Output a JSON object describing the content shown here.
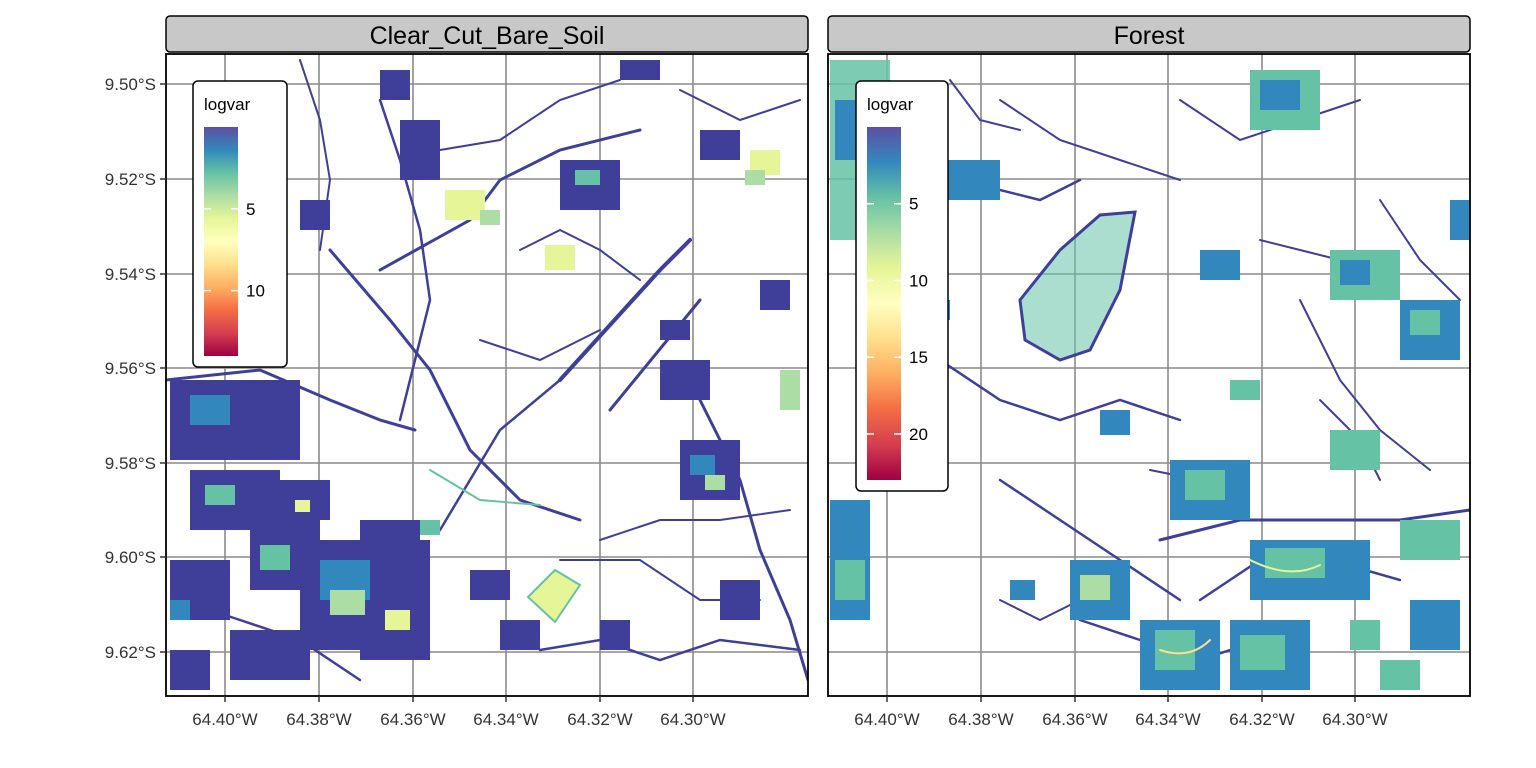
{
  "panels": [
    {
      "title": "Clear_Cut_Bare_Soil",
      "legend": {
        "title": "logvar",
        "range": [
          0,
          14
        ],
        "labels": [
          "5",
          "10"
        ],
        "values": [
          5,
          10
        ]
      }
    },
    {
      "title": "Forest",
      "legend": {
        "title": "logvar",
        "range": [
          0,
          23
        ],
        "labels": [
          "5",
          "10",
          "15",
          "20"
        ],
        "values": [
          5,
          10,
          15,
          20
        ]
      }
    }
  ],
  "axes": {
    "latitude_ticks": [
      "9.50°S",
      "9.52°S",
      "9.54°S",
      "9.56°S",
      "9.58°S",
      "9.60°S",
      "9.62°S"
    ],
    "longitude_ticks": [
      "64.40°W",
      "64.38°W",
      "64.36°W",
      "64.34°W",
      "64.32°W",
      "64.30°W"
    ]
  },
  "colors": {
    "strip_fill": "#c8c8c8",
    "grid": "#8a8a8a",
    "low_value": "#3f3f99",
    "palette": [
      "#9e0142",
      "#d53e4f",
      "#f46d43",
      "#fdae61",
      "#fee08b",
      "#ffffbf",
      "#e6f598",
      "#abdda4",
      "#66c2a5",
      "#3288bd",
      "#5e4fa2"
    ]
  }
}
